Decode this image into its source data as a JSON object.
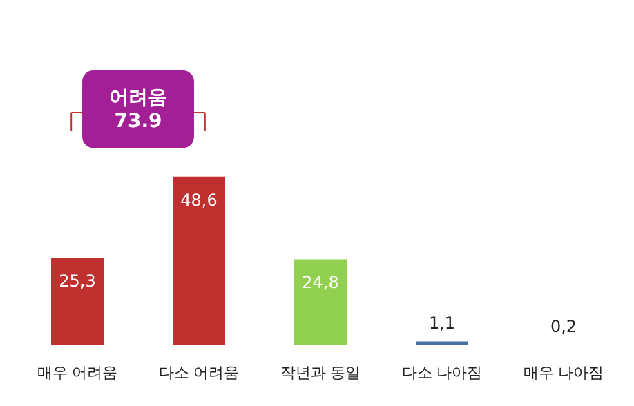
{
  "chart_data": {
    "type": "bar",
    "categories": [
      "매우 어려움",
      "다소 어려움",
      "작년과 동일",
      "다소 나아짐",
      "매우 나아짐"
    ],
    "values": [
      25.3,
      48.6,
      24.8,
      1.1,
      0.2
    ],
    "colors": [
      "#c0302e",
      "#c0302e",
      "#92d050",
      "#4a6fa5",
      "#4a6fa5"
    ],
    "value_labels": [
      "25,3",
      "48,6",
      "24,8",
      "1,1",
      "0,2"
    ],
    "annotations": [
      "어려움\n73.9"
    ],
    "tick_labels": "x"
  }
}
